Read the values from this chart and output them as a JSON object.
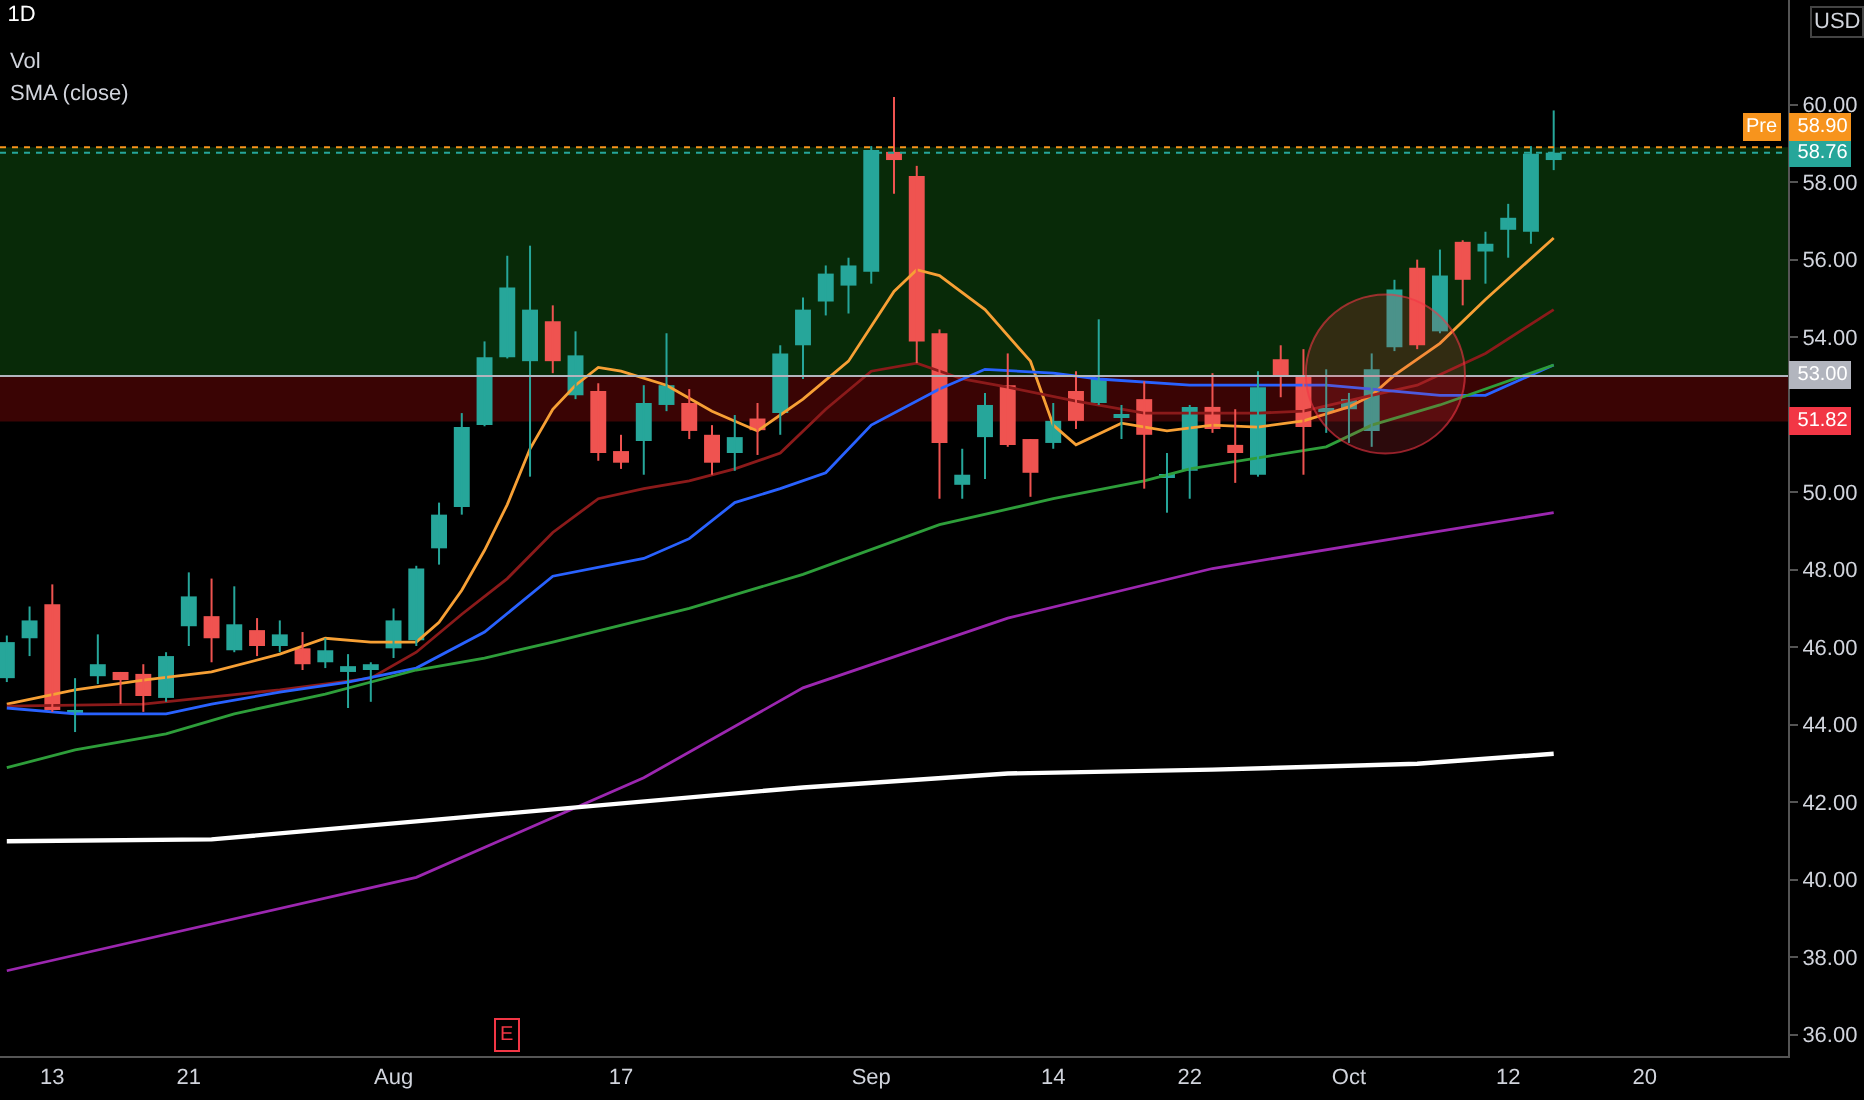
{
  "chart_data": {
    "type": "candlestick",
    "title": "1D",
    "categories": [
      null,
      null,
      "13",
      null,
      null,
      null,
      null,
      null,
      "21",
      null,
      null,
      null,
      null,
      null,
      null,
      null,
      null,
      "Aug",
      null,
      null,
      null,
      null,
      null,
      null,
      null,
      null,
      null,
      "17",
      null,
      null,
      null,
      null,
      null,
      null,
      null,
      null,
      null,
      null,
      "Sep",
      null,
      null,
      null,
      null,
      null,
      null,
      null,
      "14",
      null,
      null,
      null,
      null,
      null,
      "22",
      null,
      null,
      null,
      null,
      null,
      null,
      "Oct",
      null,
      null,
      null,
      null,
      null,
      null,
      "12",
      null,
      null,
      null,
      null,
      null,
      "20",
      null,
      null,
      null,
      null,
      null,
      null
    ],
    "ohlc": [
      [
        45.2,
        46.3,
        45.1,
        46.13
      ],
      [
        46.23,
        47.05,
        45.77,
        46.69
      ],
      [
        47.11,
        47.62,
        44.33,
        44.38
      ],
      [
        44.28,
        45.2,
        43.81,
        44.33
      ],
      [
        45.25,
        46.33,
        45.05,
        45.56
      ],
      [
        45.36,
        45.36,
        44.53,
        45.15
      ],
      [
        45.31,
        45.56,
        44.33,
        44.74
      ],
      [
        44.69,
        45.87,
        44.59,
        45.77
      ],
      [
        46.54,
        47.93,
        46.03,
        47.31
      ],
      [
        46.8,
        47.77,
        45.61,
        46.23
      ],
      [
        45.92,
        47.57,
        45.87,
        46.59
      ],
      [
        46.44,
        46.75,
        45.77,
        46.03
      ],
      [
        46.03,
        46.69,
        45.87,
        46.33
      ],
      [
        45.97,
        46.39,
        45.41,
        45.56
      ],
      [
        45.61,
        46.23,
        45.46,
        45.92
      ],
      [
        45.36,
        45.82,
        44.43,
        45.51
      ],
      [
        45.46,
        45.61,
        44.59,
        45.56
      ],
      [
        45.97,
        47.0,
        45.72,
        46.69
      ],
      [
        46.18,
        48.1,
        46.03,
        48.03
      ],
      [
        48.55,
        49.73,
        48.13,
        49.42
      ],
      [
        49.62,
        52.04,
        49.42,
        51.68
      ],
      [
        51.73,
        53.89,
        51.7,
        53.48
      ],
      [
        53.48,
        56.1,
        53.45,
        55.28
      ],
      [
        53.38,
        56.36,
        50.4,
        54.71
      ],
      [
        54.41,
        54.82,
        53.07,
        53.38
      ],
      [
        52.5,
        54.15,
        52.4,
        53.53
      ],
      [
        52.61,
        52.81,
        50.81,
        51.01
      ],
      [
        51.06,
        51.48,
        50.6,
        50.76
      ],
      [
        51.32,
        52.76,
        50.45,
        52.3
      ],
      [
        52.25,
        54.1,
        52.09,
        52.76
      ],
      [
        52.3,
        52.66,
        51.37,
        51.58
      ],
      [
        51.48,
        51.73,
        50.45,
        50.76
      ],
      [
        51.01,
        51.99,
        50.55,
        51.42
      ],
      [
        51.9,
        52.3,
        50.96,
        51.6
      ],
      [
        52.04,
        53.79,
        51.48,
        53.58
      ],
      [
        53.79,
        55.02,
        52.92,
        54.71
      ],
      [
        54.92,
        55.85,
        54.56,
        55.64
      ],
      [
        55.33,
        56.05,
        54.61,
        55.85
      ],
      [
        55.69,
        58.93,
        55.38,
        58.83
      ],
      [
        58.78,
        60.2,
        57.7,
        58.57
      ],
      [
        58.16,
        58.42,
        53.33,
        53.89
      ],
      [
        54.1,
        54.2,
        49.83,
        51.27
      ],
      [
        50.19,
        51.12,
        49.83,
        50.45
      ],
      [
        51.42,
        52.56,
        50.34,
        52.25
      ],
      [
        52.76,
        53.58,
        51.17,
        51.22
      ],
      [
        51.37,
        51.37,
        49.88,
        50.5
      ],
      [
        51.27,
        52.3,
        51.12,
        51.84
      ],
      [
        52.61,
        53.12,
        51.63,
        51.84
      ],
      [
        52.3,
        54.46,
        52.25,
        52.92
      ],
      [
        51.94,
        52.25,
        51.37,
        51.99
      ],
      [
        52.4,
        52.86,
        50.09,
        51.48
      ],
      [
        50.4,
        51.01,
        49.47,
        50.45
      ],
      [
        50.55,
        52.25,
        49.83,
        52.2
      ],
      [
        52.2,
        53.07,
        51.53,
        51.63
      ],
      [
        51.22,
        52.14,
        50.24,
        51.01
      ],
      [
        50.45,
        53.12,
        50.4,
        52.71
      ],
      [
        53.43,
        53.79,
        52.45,
        53.02
      ],
      [
        53.02,
        53.69,
        50.45,
        51.68
      ],
      [
        52.1,
        53.17,
        51.53,
        52.15
      ],
      [
        52.14,
        52.56,
        51.27,
        52.4
      ],
      [
        51.58,
        53.58,
        51.17,
        53.17
      ],
      [
        53.74,
        55.48,
        53.64,
        55.23
      ],
      [
        55.79,
        56.0,
        53.69,
        53.79
      ],
      [
        54.15,
        56.26,
        54.1,
        55.59
      ],
      [
        56.46,
        56.5,
        54.82,
        55.48
      ],
      [
        56.21,
        56.72,
        55.38,
        56.41
      ],
      [
        56.77,
        57.44,
        56.05,
        57.08
      ],
      [
        56.72,
        58.93,
        56.41,
        58.73
      ],
      [
        58.57,
        59.85,
        58.31,
        58.76
      ],
      null,
      null,
      null,
      null,
      null,
      null,
      null,
      null,
      null,
      null
    ],
    "colors": [
      "#26a69a",
      "#26a69a",
      "#ef5350",
      "#26a69a",
      "#26a69a",
      "#ef5350",
      "#ef5350",
      "#26a69a",
      "#26a69a",
      "#ef5350",
      "#26a69a",
      "#ef5350",
      "#26a69a",
      "#ef5350",
      "#26a69a",
      "#26a69a",
      "#26a69a",
      "#26a69a",
      "#26a69a",
      "#26a69a",
      "#26a69a",
      "#26a69a",
      "#26a69a",
      "#26a69a",
      "#ef5350",
      "#26a69a",
      "#ef5350",
      "#ef5350",
      "#26a69a",
      "#26a69a",
      "#ef5350",
      "#ef5350",
      "#26a69a",
      "#ef5350",
      "#26a69a",
      "#26a69a",
      "#26a69a",
      "#26a69a",
      "#26a69a",
      "#ef5350",
      "#ef5350",
      "#ef5350",
      "#26a69a",
      "#26a69a",
      "#ef5350",
      "#ef5350",
      "#26a69a",
      "#ef5350",
      "#26a69a",
      "#26a69a",
      "#ef5350",
      "#26a69a",
      "#26a69a",
      "#ef5350",
      "#ef5350",
      "#26a69a",
      "#ef5350",
      "#ef5350",
      "#26a69a",
      "#26a69a",
      "#26a69a",
      "#26a69a",
      "#ef5350",
      "#26a69a",
      "#ef5350",
      "#26a69a",
      "#26a69a",
      "#26a69a",
      "#26a69a",
      null,
      null,
      null,
      null,
      null,
      null,
      null,
      null,
      null,
      null
    ],
    "series": [
      {
        "type": "line",
        "color": "#f7a035",
        "values": [
          44.53,
          null,
          null,
          44.9,
          null,
          null,
          45.15,
          null,
          null,
          45.36,
          null,
          null,
          45.82,
          null,
          46.23,
          null,
          46.13,
          null,
          46.13,
          46.64,
          47.47,
          48.5,
          49.68,
          51.12,
          52.14,
          52.76,
          53.22,
          53.12,
          null,
          52.76,
          null,
          52.09,
          null,
          51.58,
          null,
          52.4,
          null,
          53.38,
          null,
          55.18,
          55.74,
          55.59,
          null,
          54.71,
          null,
          53.38,
          51.73,
          51.22,
          null,
          51.78,
          null,
          51.58,
          null,
          51.73,
          null,
          51.68,
          null,
          51.84,
          null,
          52.2,
          52.5,
          53.02,
          null,
          53.84,
          null,
          54.97,
          null,
          null,
          56.56,
          null,
          null,
          null,
          null,
          null,
          null,
          null,
          null,
          null,
          null
        ]
      },
      {
        "type": "line",
        "color": "#8b1a1a",
        "values": [
          44.48,
          null,
          null,
          null,
          null,
          null,
          44.53,
          null,
          null,
          null,
          null,
          null,
          44.9,
          null,
          null,
          null,
          45.2,
          null,
          45.87,
          null,
          46.85,
          null,
          47.77,
          null,
          48.96,
          null,
          49.83,
          null,
          50.09,
          null,
          50.29,
          null,
          50.6,
          null,
          51.01,
          null,
          52.14,
          null,
          53.12,
          null,
          53.33,
          null,
          52.92,
          null,
          52.71,
          null,
          null,
          52.35,
          null,
          null,
          52.04,
          null,
          52.04,
          null,
          null,
          52.04,
          null,
          52.09,
          null,
          null,
          52.5,
          null,
          52.76,
          null,
          null,
          53.58,
          null,
          null,
          54.71,
          null,
          null,
          null,
          null,
          null,
          null,
          null,
          null,
          null,
          null
        ]
      },
      {
        "type": "line",
        "color": "#2962ff",
        "values": [
          44.43,
          null,
          null,
          44.28,
          null,
          null,
          null,
          44.28,
          null,
          44.53,
          null,
          null,
          44.84,
          null,
          null,
          45.1,
          null,
          null,
          45.46,
          null,
          null,
          46.39,
          null,
          null,
          47.83,
          null,
          null,
          null,
          48.29,
          null,
          48.8,
          null,
          49.73,
          null,
          50.09,
          null,
          50.5,
          null,
          51.73,
          null,
          null,
          52.66,
          null,
          53.17,
          null,
          null,
          53.07,
          null,
          52.92,
          null,
          null,
          null,
          52.76,
          null,
          null,
          52.76,
          null,
          null,
          52.76,
          null,
          52.66,
          null,
          null,
          52.5,
          null,
          52.5,
          null,
          null,
          53.28,
          null,
          null,
          null,
          null,
          null,
          null,
          null,
          null,
          null,
          null
        ]
      },
      {
        "type": "line",
        "color": "#2e9e3a",
        "values": [
          42.89,
          null,
          null,
          43.35,
          null,
          null,
          null,
          43.76,
          null,
          null,
          44.28,
          null,
          null,
          null,
          44.79,
          null,
          null,
          null,
          45.41,
          null,
          null,
          45.72,
          null,
          null,
          46.13,
          null,
          null,
          null,
          null,
          null,
          47.0,
          null,
          null,
          null,
          null,
          47.88,
          null,
          null,
          null,
          null,
          null,
          49.16,
          null,
          null,
          null,
          null,
          49.83,
          null,
          null,
          null,
          50.29,
          null,
          50.6,
          null,
          null,
          null,
          null,
          null,
          51.17,
          null,
          51.73,
          null,
          null,
          52.25,
          null,
          null,
          null,
          null,
          53.28,
          null,
          null,
          null,
          null,
          null,
          null,
          null,
          null,
          null,
          null
        ]
      },
      {
        "type": "line",
        "color": "#9c27b0",
        "values": [
          37.65,
          null,
          null,
          null,
          null,
          null,
          null,
          null,
          null,
          null,
          null,
          null,
          null,
          null,
          null,
          null,
          null,
          null,
          40.06,
          null,
          null,
          null,
          null,
          null,
          null,
          null,
          null,
          null,
          42.63,
          null,
          null,
          null,
          null,
          null,
          null,
          44.95,
          null,
          null,
          null,
          null,
          null,
          null,
          null,
          null,
          46.75,
          null,
          null,
          null,
          null,
          null,
          null,
          null,
          null,
          48.03,
          null,
          null,
          null,
          null,
          null,
          null,
          null,
          null,
          48.9,
          null,
          null,
          null,
          null,
          null,
          49.47,
          null,
          null,
          null,
          null,
          null,
          null,
          null,
          null,
          null,
          null
        ]
      },
      {
        "type": "line",
        "color": "#ffffff",
        "values": [
          40.99,
          null,
          null,
          null,
          null,
          null,
          null,
          null,
          null,
          41.04,
          null,
          null,
          null,
          null,
          null,
          null,
          null,
          null,
          null,
          null,
          null,
          null,
          41.71,
          null,
          null,
          null,
          null,
          null,
          null,
          null,
          null,
          null,
          null,
          null,
          null,
          42.38,
          null,
          null,
          null,
          null,
          null,
          null,
          null,
          null,
          42.74,
          null,
          null,
          null,
          null,
          null,
          null,
          null,
          null,
          42.84,
          null,
          null,
          null,
          null,
          null,
          null,
          null,
          null,
          42.99,
          null,
          null,
          null,
          null,
          null,
          43.25,
          null,
          null,
          null,
          null,
          null,
          null,
          null,
          null,
          null,
          null
        ]
      }
    ],
    "bands": [
      {
        "axis": "y",
        "from": 53,
        "to": 58.9,
        "color": "#082a08"
      },
      {
        "axis": "y",
        "from": 51.82,
        "to": 53,
        "color": "#3a0404",
        "label": "51.82"
      }
    ],
    "ref_lines": [
      {
        "axis": "y",
        "value": 58.9,
        "label": "58.90",
        "color": "#f7941d",
        "line_style": "dotted"
      },
      {
        "axis": "y",
        "value": 58.76,
        "label": "58.76",
        "color": "#26a69a",
        "line_style": "dotted"
      },
      {
        "axis": "y",
        "value": 53,
        "label": "53.00",
        "color": "#b2b5be",
        "line_style": "solid"
      }
    ],
    "annotations": [
      "Vol",
      "SMA (close)",
      "USD",
      "Pre",
      "E"
    ],
    "ylim": [
      35.45,
      62.7
    ],
    "yticks": [
      {
        "value": 36,
        "label": "36.00"
      },
      {
        "value": 38,
        "label": "38.00"
      },
      {
        "value": 40,
        "label": "40.00"
      },
      {
        "value": 42,
        "label": "42.00"
      },
      {
        "value": 44,
        "label": "44.00"
      },
      {
        "value": 46,
        "label": "46.00"
      },
      {
        "value": 48,
        "label": "48.00"
      },
      {
        "value": 50,
        "label": "50.00"
      },
      {
        "value": 52,
        "label": null
      },
      {
        "value": 54,
        "label": "54.00"
      },
      {
        "value": 56,
        "label": "56.00"
      },
      {
        "value": 58,
        "label": "58.00"
      },
      {
        "value": 60,
        "label": "60.00"
      }
    ]
  }
}
